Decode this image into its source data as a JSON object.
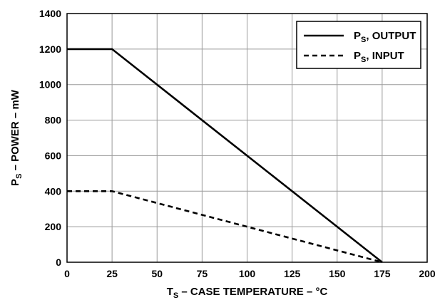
{
  "chart_data": {
    "type": "line",
    "xlabel": {
      "main": "T",
      "sub": "S",
      "rest": " – CASE TEMPERATURE – °C"
    },
    "ylabel": {
      "main": "P",
      "sub": "S",
      "rest": " – POWER – mW"
    },
    "xlim": [
      0,
      200
    ],
    "ylim": [
      0,
      1400
    ],
    "xticks": [
      0,
      25,
      50,
      75,
      100,
      125,
      150,
      175,
      200
    ],
    "yticks": [
      0,
      200,
      400,
      600,
      800,
      1000,
      1200,
      1400
    ],
    "grid": true,
    "legend_position": "top-right",
    "series": [
      {
        "name": "P_S, OUTPUT",
        "label": {
          "main": "P",
          "sub": "S",
          "rest": ", OUTPUT"
        },
        "style": "solid",
        "color": "#000000",
        "x": [
          0,
          25,
          175
        ],
        "y": [
          1200,
          1200,
          0
        ]
      },
      {
        "name": "P_S, INPUT",
        "label": {
          "main": "P",
          "sub": "S",
          "rest": ", INPUT"
        },
        "style": "dashed",
        "color": "#000000",
        "x": [
          0,
          25,
          175
        ],
        "y": [
          400,
          400,
          0
        ]
      }
    ]
  }
}
